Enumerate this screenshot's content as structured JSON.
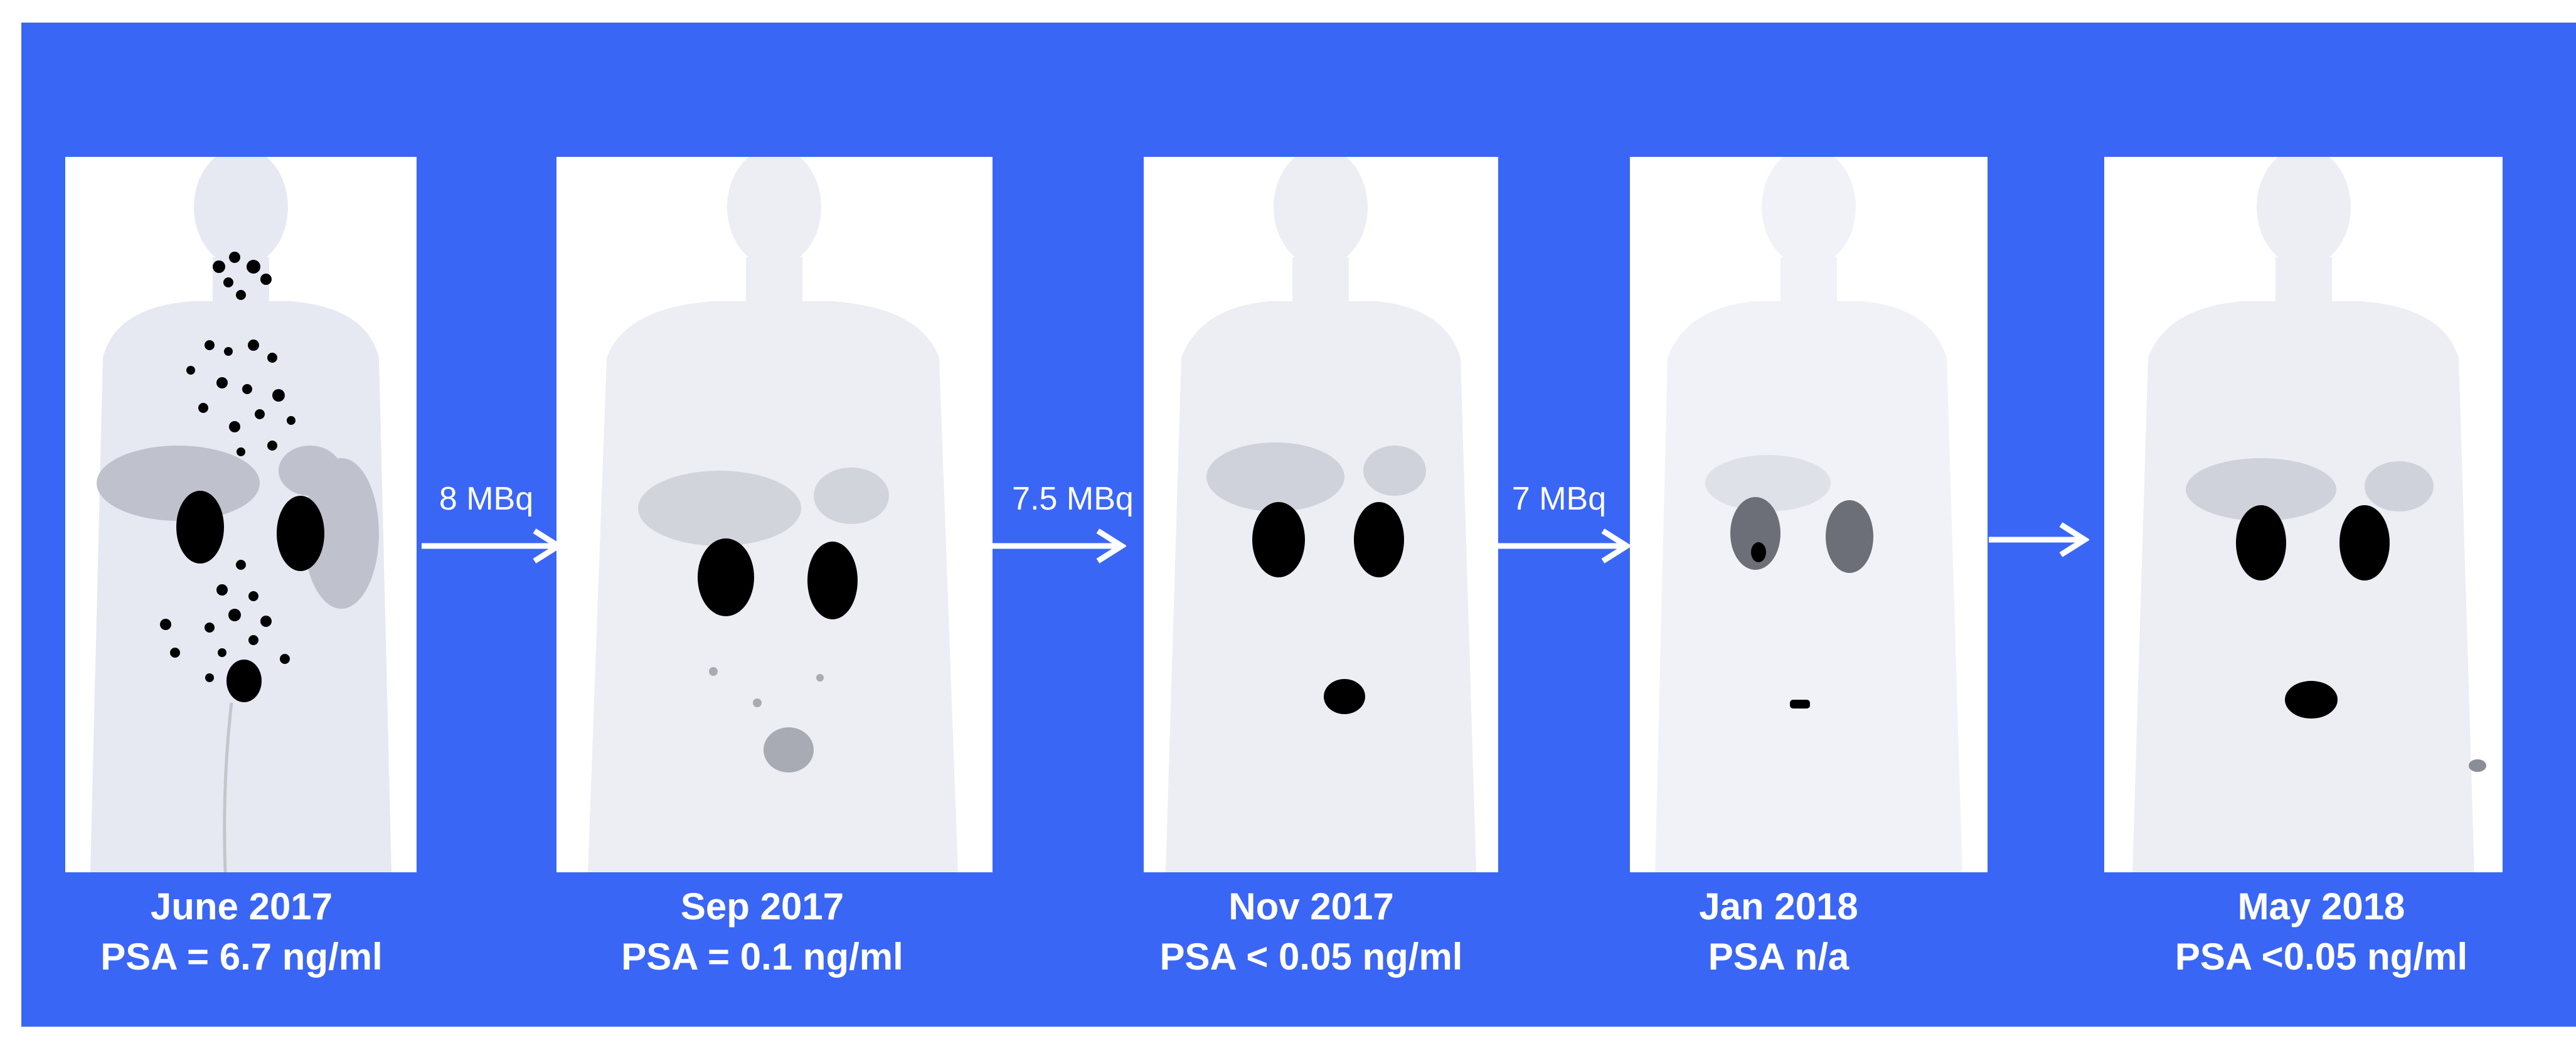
{
  "colors": {
    "background": "#3a66f6",
    "scan": "#ffffff",
    "uptake": "#000000",
    "text": "#ffffff"
  },
  "scans": [
    {
      "date": "June 2017",
      "psa": "PSA = 6.7 ng/ml"
    },
    {
      "date": "Sep 2017",
      "psa": "PSA = 0.1 ng/ml"
    },
    {
      "date": "Nov 2017",
      "psa": "PSA < 0.05 ng/ml"
    },
    {
      "date": "Jan 2018",
      "psa": "PSA n/a"
    },
    {
      "date": "May 2018",
      "psa": "PSA <0.05 ng/ml"
    }
  ],
  "doses": [
    "8 MBq",
    "7.5 MBq",
    "7 MBq",
    ""
  ]
}
